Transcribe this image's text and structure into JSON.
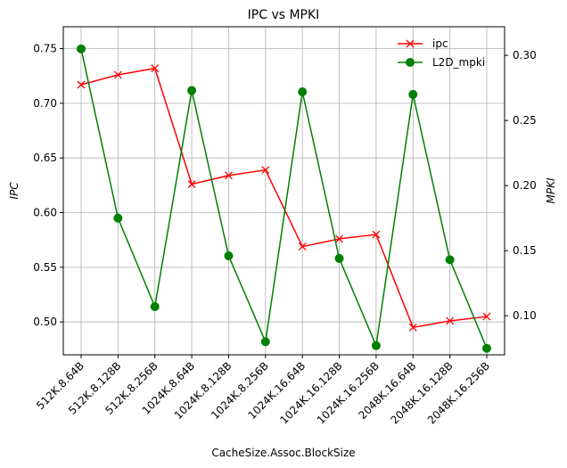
{
  "chart_data": {
    "type": "line",
    "title": "IPC vs MPKI",
    "xlabel": "CacheSize.Assoc.BlockSize",
    "ylabel_left": "IPC",
    "ylabel_right": "MPKI",
    "categories": [
      "512K.8.64B",
      "512K.8.128B",
      "512K.8.256B",
      "1024K.8.64B",
      "1024K.8.128B",
      "1024K.8.256B",
      "1024K.16.64B",
      "1024K.16.128B",
      "1024K.16.256B",
      "2048K.16.64B",
      "2048K.16.128B",
      "2048K.16.256B"
    ],
    "y_left": {
      "range": [
        0.47,
        0.77
      ],
      "ticks": [
        "0.50",
        "0.55",
        "0.60",
        "0.65",
        "0.70",
        "0.75"
      ]
    },
    "y_right": {
      "range": [
        0.07,
        0.322
      ],
      "ticks": [
        "0.10",
        "0.15",
        "0.20",
        "0.25",
        "0.30"
      ]
    },
    "grid": true,
    "legend_position": "top-right",
    "series": [
      {
        "name": "ipc",
        "axis": "left",
        "color": "#ff0000",
        "marker": "x",
        "values": [
          0.717,
          0.726,
          0.732,
          0.626,
          0.634,
          0.639,
          0.569,
          0.576,
          0.58,
          0.495,
          0.501,
          0.505
        ]
      },
      {
        "name": "L2D_mpki",
        "axis": "right",
        "color": "#008000",
        "marker": "o",
        "values": [
          0.305,
          0.175,
          0.107,
          0.273,
          0.146,
          0.08,
          0.272,
          0.144,
          0.077,
          0.27,
          0.143,
          0.075
        ]
      }
    ]
  }
}
